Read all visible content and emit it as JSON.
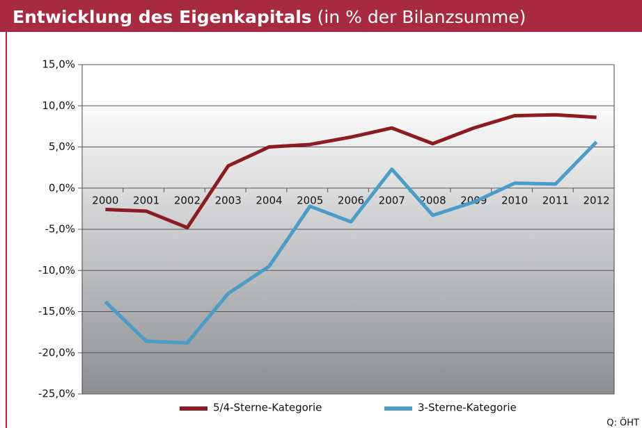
{
  "chart_data": {
    "type": "line",
    "title": "Entwicklung des Eigenkapitals",
    "subtitle": "(in % der Bilanzsumme)",
    "categories": [
      "2000",
      "2001",
      "2002",
      "2003",
      "2004",
      "2005",
      "2006",
      "2007",
      "2008",
      "2009",
      "2010",
      "2011",
      "2012"
    ],
    "series": [
      {
        "name": "5/4-Sterne-Kategorie",
        "color": "#8c1c22",
        "values": [
          -2.6,
          -2.8,
          -4.8,
          2.7,
          5.0,
          5.3,
          6.2,
          7.3,
          5.4,
          7.3,
          8.8,
          8.9,
          8.6
        ]
      },
      {
        "name": "3-Sterne-Kategorie",
        "color": "#4b9cc6",
        "values": [
          -13.8,
          -18.6,
          -18.8,
          -12.8,
          -9.5,
          -2.2,
          -4.1,
          2.3,
          -3.3,
          -1.7,
          0.6,
          0.5,
          5.6
        ]
      }
    ],
    "ylim": [
      -25,
      15
    ],
    "yticks": [
      {
        "value": -25,
        "label": "-25,0%"
      },
      {
        "value": -20,
        "label": "-20,0%"
      },
      {
        "value": -15,
        "label": "-15,0%"
      },
      {
        "value": -10,
        "label": "-10,0%"
      },
      {
        "value": -5,
        "label": "-5,0%"
      },
      {
        "value": 0,
        "label": "0,0%"
      },
      {
        "value": 5,
        "label": "5,0%"
      },
      {
        "value": 10,
        "label": "10,0%"
      },
      {
        "value": 15,
        "label": "15,0%"
      }
    ],
    "grid": true,
    "legend": "bottom",
    "source": "Q: ÖHT"
  }
}
